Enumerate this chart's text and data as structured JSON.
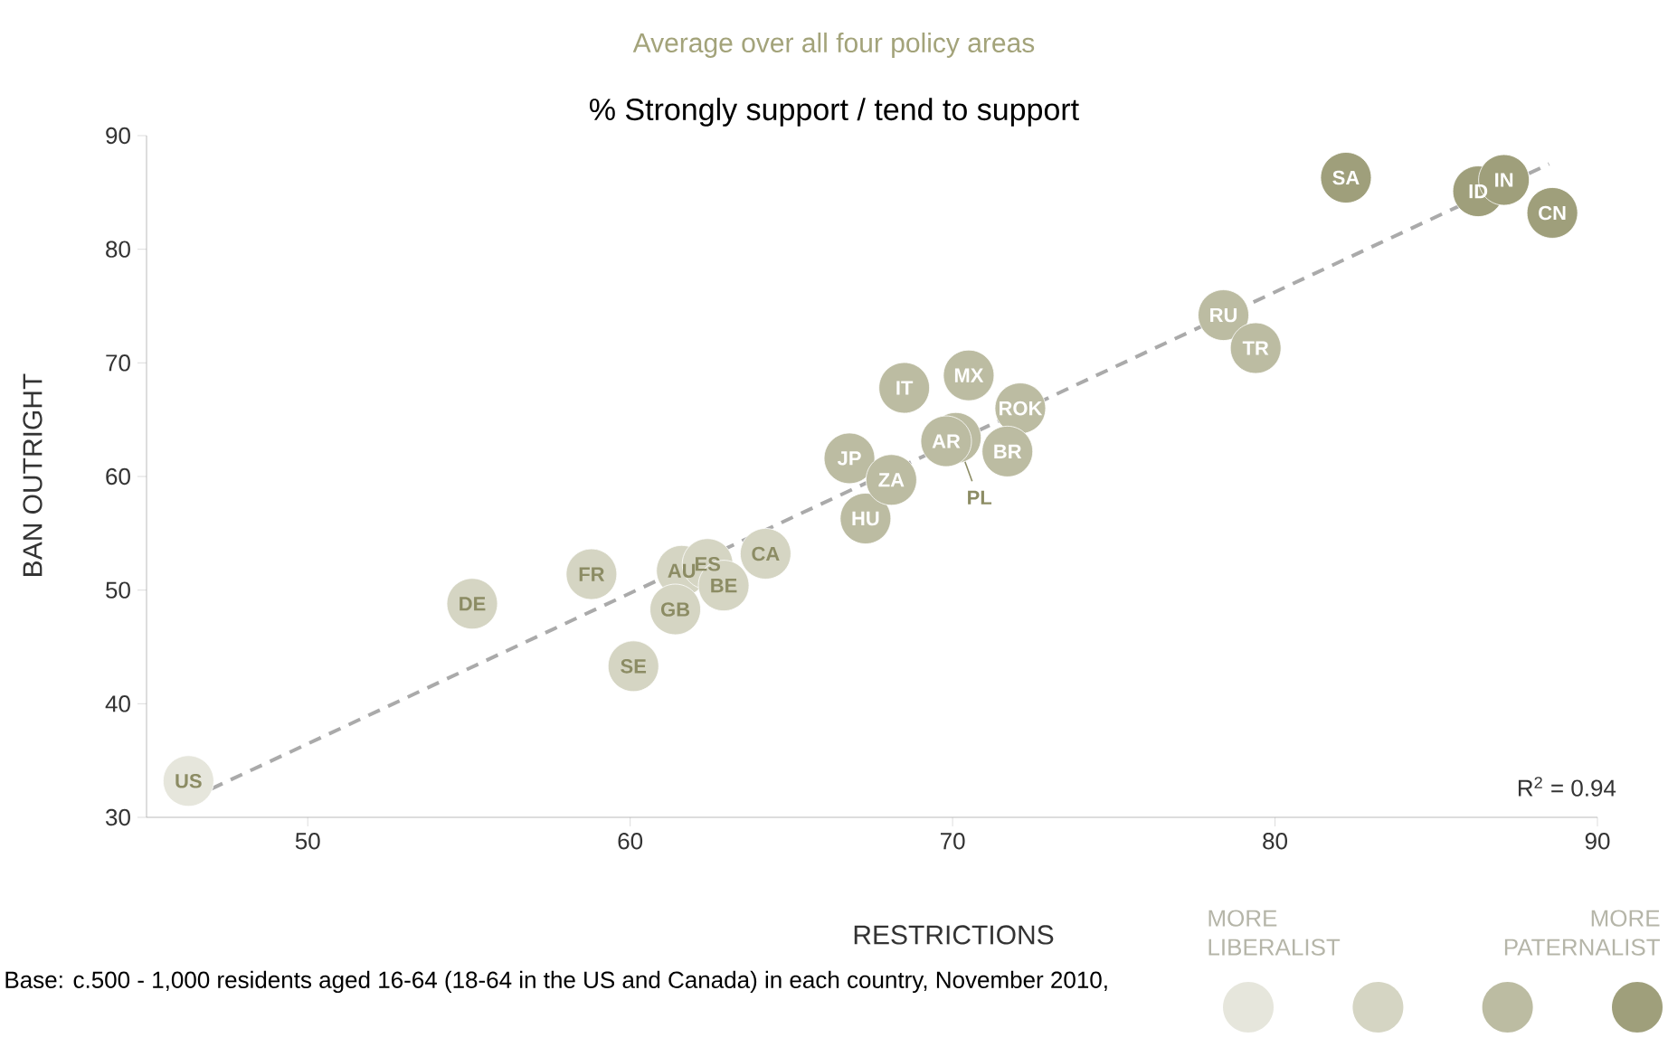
{
  "chart_data": {
    "type": "scatter",
    "title": "% Strongly support / tend to support",
    "subtitle": "Average over all four policy areas",
    "xlabel": "RESTRICTIONS",
    "ylabel": "BAN OUTRIGHT",
    "xlim": [
      45,
      90
    ],
    "ylim": [
      30,
      90
    ],
    "xticks": [
      50,
      60,
      70,
      80,
      90
    ],
    "yticks": [
      30,
      40,
      50,
      60,
      70,
      80,
      90
    ],
    "marker": "circle",
    "series": [
      {
        "color": "#e6e6dc",
        "x": [
          46.3
        ],
        "values": [
          33.2
        ],
        "value_labels": [
          "US"
        ]
      },
      {
        "color": "#d5d5c3",
        "x": [
          55.1,
          58.8,
          61.6,
          62.4,
          62.9,
          61.4,
          60.1,
          64.2
        ],
        "values": [
          48.8,
          51.4,
          51.7,
          52.3,
          50.4,
          48.3,
          43.3,
          53.2
        ],
        "value_labels": [
          "DE",
          "FR",
          "AU",
          "ES",
          "BE",
          "GB",
          "SE",
          "CA"
        ]
      },
      {
        "color": "#bcbca2",
        "x": [
          67.3,
          66.8,
          68.1,
          68.5,
          70.5,
          70.1,
          69.8,
          72.1,
          71.7,
          78.4,
          79.4
        ],
        "values": [
          56.3,
          61.6,
          59.7,
          67.8,
          68.9,
          63.4,
          63.1,
          66.0,
          62.2,
          74.2,
          71.3
        ],
        "value_labels": [
          "HU",
          "JP",
          "ZA",
          "IT",
          "MX",
          null,
          "AR",
          "ROK",
          "BR",
          "RU",
          "TR"
        ]
      },
      {
        "color": "#9f9f7b",
        "x": [
          82.2,
          86.3,
          87.1,
          88.6
        ],
        "values": [
          86.3,
          85.1,
          86.1,
          83.2
        ],
        "value_labels": [
          "SA",
          "ID",
          "IN",
          "CN"
        ]
      },
      {
        "type": "line",
        "color": "#aaaaaa",
        "line_style": "dashed",
        "marker": "none",
        "x": [
          47,
          88.5
        ],
        "values": [
          32.5,
          87.5
        ]
      }
    ],
    "annotations": [
      "R$^{2}$ = 0.94",
      "MORE LIBERALIST",
      "MORE PATERNALIST",
      "Base: c.500 - 1,000 residents aged 16-64 (18-64 in the US and Canada) in each country, November 2010,",
      {
        "text": "PL",
        "x": 70.1,
        "y": 63.4
      }
    ]
  }
}
